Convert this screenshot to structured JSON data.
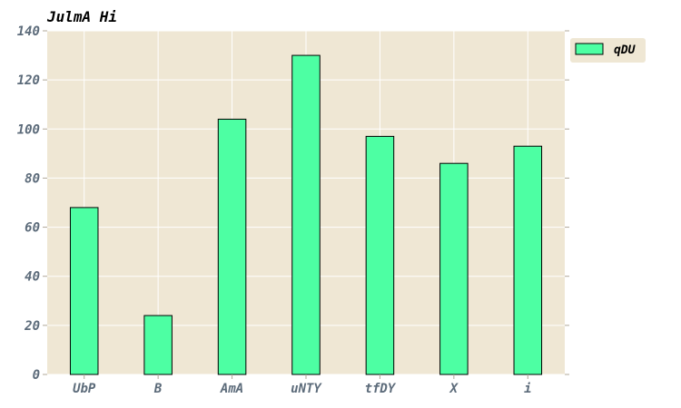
{
  "chart_data": {
    "type": "bar",
    "title": "JulmA Hi",
    "xlabel": "",
    "ylabel": "",
    "categories": [
      "UbP",
      "B",
      "AmA",
      "uNTY",
      "tfDY",
      "X",
      "i"
    ],
    "series": [
      {
        "name": "qDU",
        "values": [
          68,
          24,
          104,
          130,
          97,
          86,
          93
        ]
      }
    ],
    "ylim": [
      0,
      140
    ],
    "yticks": [
      0,
      20,
      40,
      60,
      80,
      100,
      120,
      140
    ],
    "grid": true,
    "legend_position": "outside-top-right"
  },
  "colors": {
    "bar": "#4dffa3",
    "bar_edge": "#000000",
    "plot_background": "#efe7d4",
    "grid": "#ffffff",
    "tick_label": "#5c6b7a",
    "axis_spine": "#b0a898"
  }
}
